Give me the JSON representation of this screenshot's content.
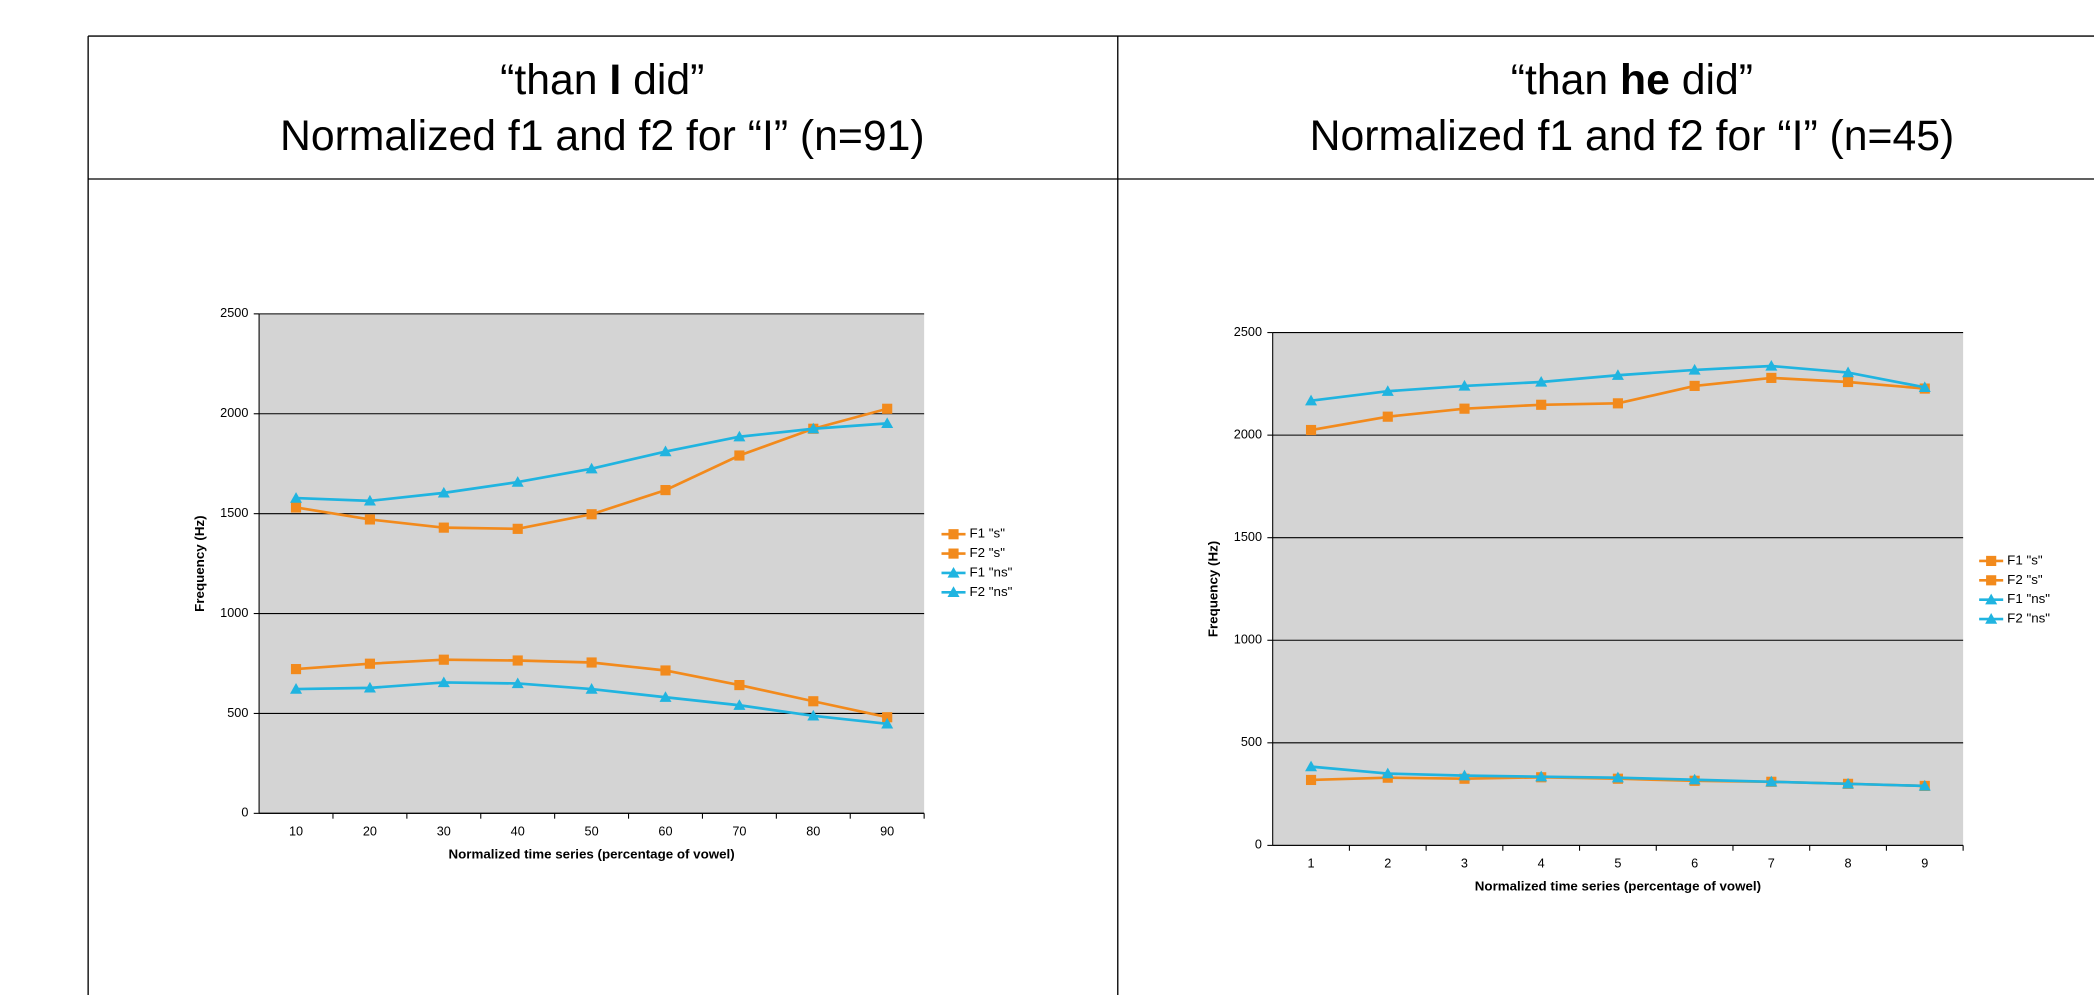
{
  "panels": [
    {
      "heading": [
        "“than ",
        "I",
        " did”"
      ],
      "subheading": "Normalized f1 and f2 for “I” (n=91)"
    },
    {
      "heading": [
        "“than ",
        "he",
        " did”"
      ],
      "subheading": "Normalized f1 and f2 for “I” (n=45)"
    }
  ],
  "chart_data": [
    {
      "type": "line",
      "x_label": "Normalized time series (percentage of vowel)",
      "y_label": "Frequency (Hz)",
      "categories": [
        "10",
        "20",
        "30",
        "40",
        "50",
        "60",
        "70",
        "80",
        "90"
      ],
      "ylim": [
        0,
        2500
      ],
      "yticks": [
        0,
        500,
        1000,
        1500,
        2000,
        2500
      ],
      "grid": true,
      "legend": "right",
      "series": [
        {
          "name": "F1 \"s\"",
          "color": "#f28a1c",
          "marker": "square",
          "values": [
            722,
            749,
            769,
            765,
            755,
            715,
            642,
            561,
            481
          ]
        },
        {
          "name": "F2 \"s\"",
          "color": "#f28a1c",
          "marker": "square",
          "values": [
            1531,
            1471,
            1430,
            1424,
            1497,
            1618,
            1791,
            1925,
            2025
          ]
        },
        {
          "name": "F1 \"ns\"",
          "color": "#20b4e0",
          "marker": "triangle",
          "values": [
            622,
            628,
            655,
            650,
            622,
            581,
            541,
            488,
            448
          ]
        },
        {
          "name": "F2 \"ns\"",
          "color": "#20b4e0",
          "marker": "triangle",
          "values": [
            1578,
            1564,
            1604,
            1658,
            1725,
            1811,
            1885,
            1925,
            1952
          ]
        }
      ]
    },
    {
      "type": "line",
      "x_label": "Normalized time series (percentage of vowel)",
      "y_label": "Frequency (Hz)",
      "categories": [
        "1",
        "2",
        "3",
        "4",
        "5",
        "6",
        "7",
        "8",
        "9"
      ],
      "ylim": [
        0,
        2500
      ],
      "yticks": [
        0,
        500,
        1000,
        1500,
        2000,
        2500
      ],
      "grid": true,
      "legend": "right",
      "series": [
        {
          "name": "F1 \"s\"",
          "color": "#f28a1c",
          "marker": "square",
          "values": [
            319,
            330,
            325,
            332,
            325,
            315,
            310,
            300,
            290
          ]
        },
        {
          "name": "F2 \"s\"",
          "color": "#f28a1c",
          "marker": "square",
          "values": [
            2025,
            2090,
            2129,
            2148,
            2155,
            2240,
            2279,
            2259,
            2227
          ]
        },
        {
          "name": "F1 \"ns\"",
          "color": "#20b4e0",
          "marker": "triangle",
          "values": [
            384,
            350,
            340,
            335,
            330,
            320,
            310,
            300,
            290
          ]
        },
        {
          "name": "F2 \"ns\"",
          "color": "#20b4e0",
          "marker": "triangle",
          "values": [
            2168,
            2214,
            2240,
            2259,
            2292,
            2318,
            2337,
            2305,
            2233
          ]
        }
      ]
    }
  ]
}
